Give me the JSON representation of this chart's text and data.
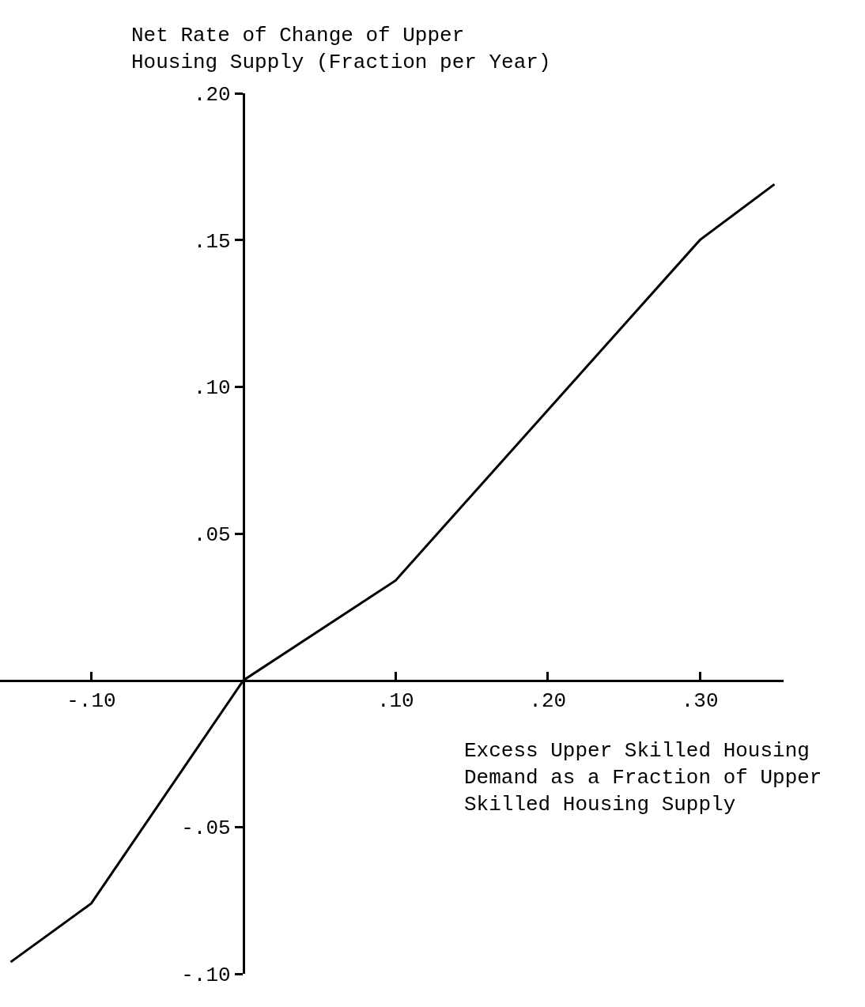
{
  "chart_data": {
    "type": "line",
    "xlabel": "Excess Upper Skilled Housing Demand as a Fraction of Upper Skilled Housing Supply",
    "ylabel": "Net Rate of Change of Upper Housing Supply (Fraction per Year)",
    "x": [
      -0.153,
      -0.1,
      0,
      0.1,
      0.3,
      0.349
    ],
    "series": [
      {
        "color": "#000000",
        "values": [
          -0.096,
          -0.076,
          0,
          0.034,
          0.15,
          0.169
        ]
      }
    ],
    "xlim": [
      -0.16,
      0.355
    ],
    "ylim": [
      -0.1,
      0.2
    ],
    "xticks": [
      {
        "value": -0.1,
        "label": "-.10"
      },
      {
        "value": 0.1,
        "label": ".10"
      },
      {
        "value": 0.2,
        "label": ".20"
      },
      {
        "value": 0.3,
        "label": ".30"
      }
    ],
    "yticks": [
      {
        "value": -0.1,
        "label": "-.10"
      },
      {
        "value": -0.05,
        "label": "-.05"
      },
      {
        "value": 0.05,
        "label": ".05"
      },
      {
        "value": 0.1,
        "label": ".10"
      },
      {
        "value": 0.15,
        "label": ".15"
      },
      {
        "value": 0.2,
        "label": ".20"
      }
    ],
    "marker": "none",
    "line_style": "solid"
  }
}
